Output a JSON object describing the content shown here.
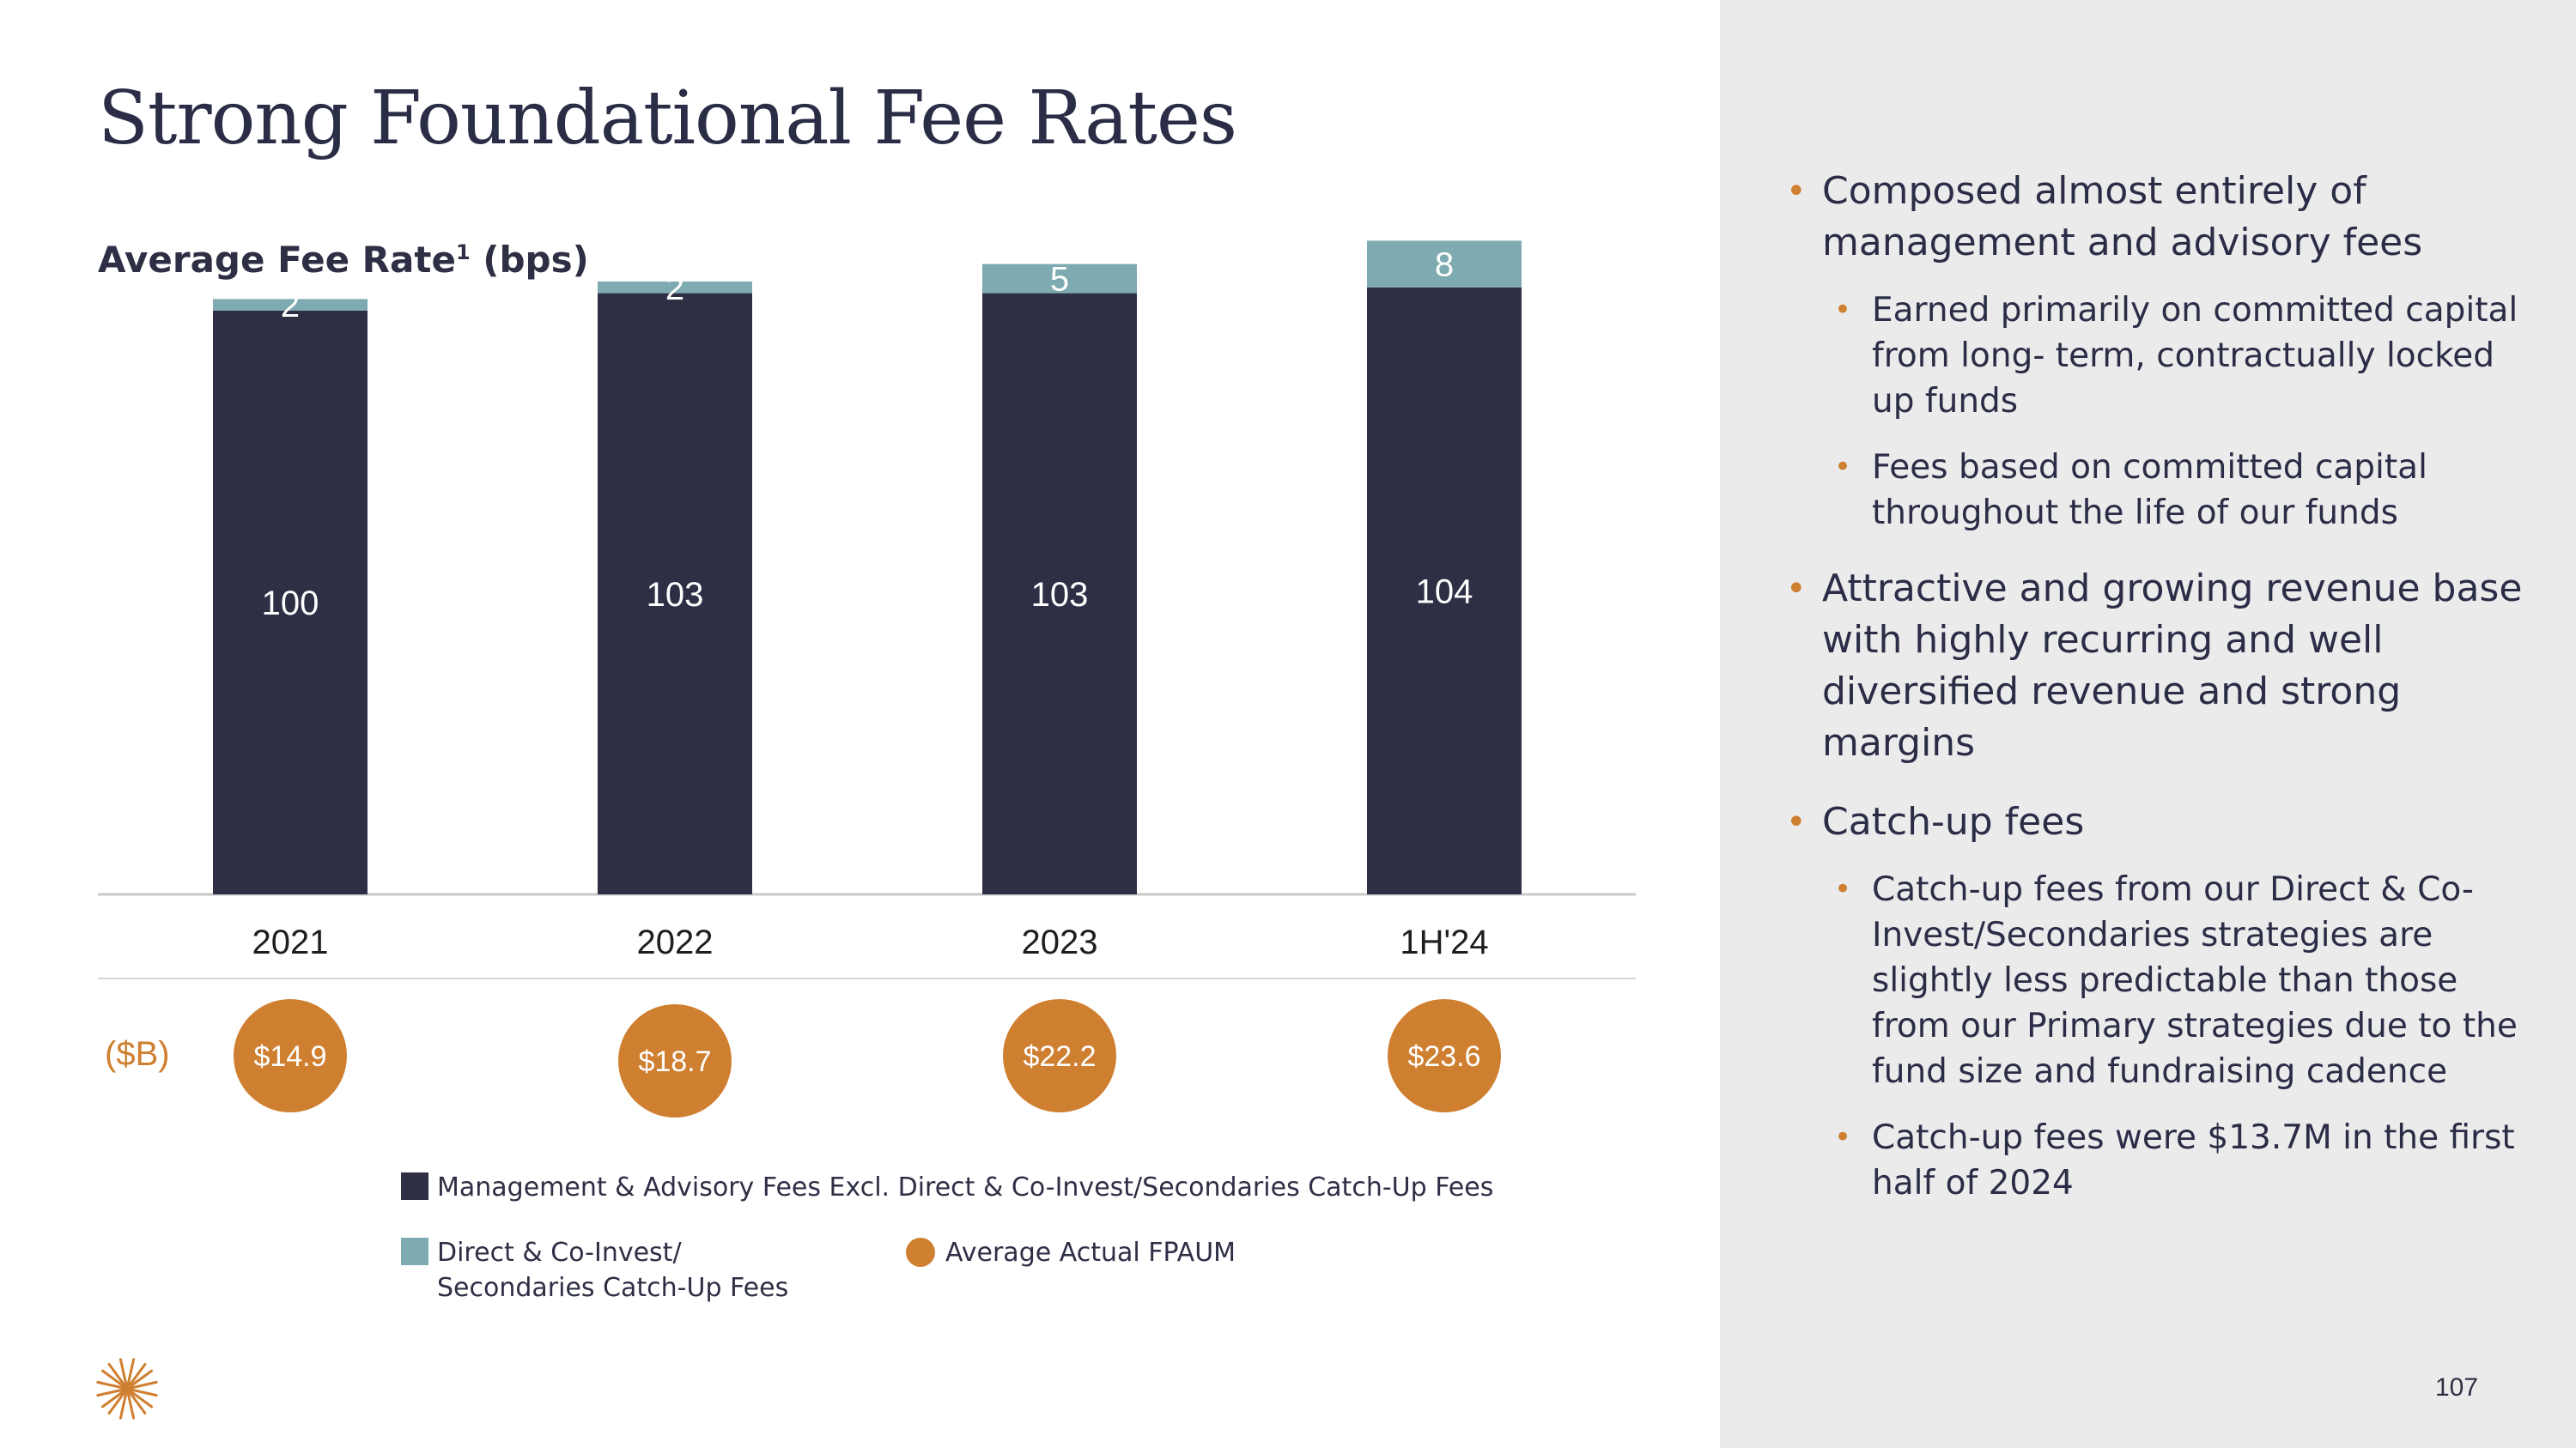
{
  "slide": {
    "title": "Strong Foundational Fee Rates",
    "subtitle": "Average Fee Rate",
    "subtitle_superscript": "1",
    "subtitle_unit": "(bps)",
    "page_number": "107"
  },
  "chart_data": {
    "type": "bar",
    "stacked": true,
    "categories": [
      "2021",
      "2022",
      "2023",
      "1H'24"
    ],
    "series": [
      {
        "name": "Management & Advisory Fees Excl. Direct & Co-Invest/Secondaries Catch-Up Fees",
        "values": [
          100,
          103,
          103,
          104
        ],
        "color": "#2e2f45"
      },
      {
        "name": "Direct & Co-Invest/\nSecondaries Catch-Up Fees",
        "values": [
          2,
          2,
          5,
          8
        ],
        "color": "#7eaab1"
      }
    ],
    "value_labels": {
      "base": [
        "100",
        "103",
        "103",
        "104"
      ],
      "top": [
        "2",
        "2",
        "5",
        "8"
      ]
    },
    "fpaum": {
      "name": "Average Actual FPAUM",
      "unit": "($B)",
      "values": [
        14.9,
        18.7,
        22.2,
        23.6
      ],
      "labels": [
        "$14.9",
        "$18.7",
        "$22.2",
        "$23.6"
      ],
      "color": "#cf7f30"
    },
    "grid": false
  },
  "bullets": [
    {
      "text": "Composed almost entirely of management and advisory fees",
      "sub": [
        "Earned primarily on committed capital from long- term, contractually locked up funds",
        "Fees based on committed capital throughout the life of our funds"
      ]
    },
    {
      "text": "Attractive and growing revenue base with highly recurring and well diversified revenue and strong margins",
      "sub": []
    },
    {
      "text": "Catch-up fees",
      "sub": [
        "Catch-up fees from our Direct & Co-Invest/Secondaries strategies are slightly less predictable than those from our Primary strategies due to the fund size and fundraising cadence",
        "Catch-up fees were $13.7M in the first half of 2024"
      ]
    }
  ],
  "colors": {
    "navy": "#2e2f45",
    "teal": "#7eaab1",
    "orange": "#cf7f30",
    "panel": "#ebebeb"
  },
  "icons": {
    "logo": "starburst-logo-icon"
  }
}
